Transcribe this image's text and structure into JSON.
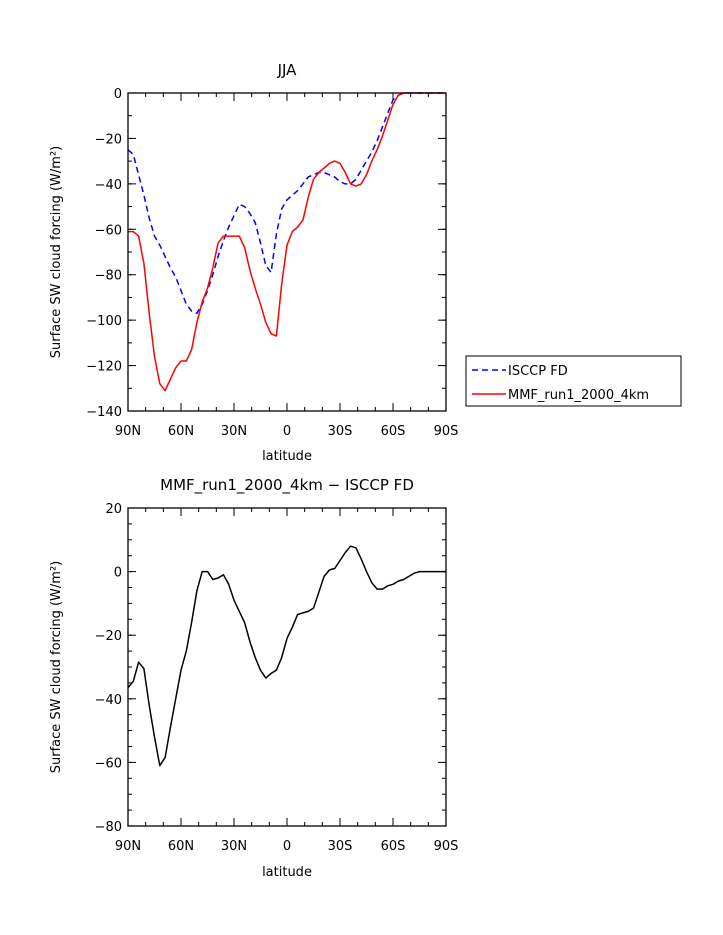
{
  "chart_data": [
    {
      "type": "line",
      "title": "JJA",
      "xlabel": "latitude",
      "ylabel": "Surface SW cloud forcing (W/m²)",
      "xlim": [
        90,
        -90
      ],
      "ylim": [
        -140,
        0
      ],
      "x_tick_labels": [
        "90N",
        "60N",
        "30N",
        "0",
        "30S",
        "60S",
        "90S"
      ],
      "x_tick_values": [
        90,
        60,
        30,
        0,
        -30,
        -60,
        -90
      ],
      "y_ticks": [
        0,
        -20,
        -40,
        -60,
        -80,
        -100,
        -120,
        -140
      ],
      "legend_position": "right",
      "series": [
        {
          "name": "ISCCP FD",
          "color": "#0000ff",
          "style": "dashed",
          "x": [
            90,
            87,
            84,
            81,
            78,
            75,
            72,
            69,
            66,
            63,
            60,
            57,
            54,
            51,
            48,
            45,
            42,
            39,
            36,
            33,
            30,
            27,
            24,
            21,
            18,
            15,
            12,
            9,
            6,
            3,
            0,
            -3,
            -6,
            -9,
            -12,
            -15,
            -18,
            -21,
            -24,
            -27,
            -30,
            -33,
            -36,
            -39,
            -42,
            -45,
            -48,
            -51,
            -54,
            -57,
            -60,
            -63,
            -66,
            -69,
            -72,
            -75,
            -78,
            -81,
            -84,
            -87,
            -90
          ],
          "y": [
            -25,
            -27,
            -36,
            -45,
            -55,
            -63,
            -67,
            -72,
            -77,
            -81,
            -87,
            -93,
            -96,
            -97,
            -93,
            -87,
            -80,
            -72,
            -65,
            -59,
            -54,
            -49,
            -50,
            -53,
            -57,
            -66,
            -76,
            -79,
            -62,
            -51,
            -47,
            -45,
            -43,
            -40,
            -37,
            -36,
            -35,
            -35,
            -36,
            -37,
            -39,
            -40,
            -40,
            -38,
            -34,
            -30,
            -26,
            -21,
            -15,
            -9,
            -3,
            -1,
            0,
            0,
            0,
            0,
            0,
            0,
            0,
            0,
            0
          ]
        },
        {
          "name": "MMF_run1_2000_4km",
          "color": "#ff0000",
          "style": "solid",
          "x": [
            90,
            87,
            84,
            81,
            78,
            75,
            72,
            69,
            66,
            63,
            60,
            57,
            54,
            51,
            48,
            45,
            42,
            39,
            36,
            33,
            30,
            27,
            24,
            21,
            18,
            15,
            12,
            9,
            6,
            3,
            0,
            -3,
            -6,
            -9,
            -12,
            -15,
            -18,
            -21,
            -24,
            -27,
            -30,
            -33,
            -36,
            -39,
            -42,
            -45,
            -48,
            -51,
            -54,
            -57,
            -60,
            -63,
            -66,
            -69,
            -72,
            -75,
            -78,
            -81,
            -84,
            -87,
            -90
          ],
          "y": [
            -61,
            -61,
            -63,
            -75,
            -97,
            -116,
            -128,
            -131,
            -126,
            -121,
            -118,
            -118,
            -113,
            -101,
            -92,
            -86,
            -77,
            -66,
            -63,
            -63,
            -63,
            -63,
            -68,
            -78,
            -86,
            -93,
            -101,
            -106,
            -107,
            -84,
            -67,
            -61,
            -59,
            -56,
            -46,
            -38,
            -35,
            -33,
            -31,
            -30,
            -31,
            -35,
            -40,
            -41,
            -40,
            -36,
            -30,
            -25,
            -19,
            -12,
            -5,
            -1,
            0,
            0,
            0,
            0,
            0,
            0,
            0,
            0,
            0
          ]
        }
      ]
    },
    {
      "type": "line",
      "title": "MMF_run1_2000_4km − ISCCP FD",
      "xlabel": "latitude",
      "ylabel": "Surface SW cloud forcing (W/m²)",
      "xlim": [
        90,
        -90
      ],
      "ylim": [
        -80,
        20
      ],
      "x_tick_labels": [
        "90N",
        "60N",
        "30N",
        "0",
        "30S",
        "60S",
        "90S"
      ],
      "x_tick_values": [
        90,
        60,
        30,
        0,
        -30,
        -60,
        -90
      ],
      "y_ticks": [
        20,
        0,
        -20,
        -40,
        -60,
        -80
      ],
      "series": [
        {
          "color": "#000000",
          "style": "solid",
          "x": [
            90,
            87,
            84,
            81,
            78,
            75,
            72,
            69,
            66,
            63,
            60,
            57,
            54,
            51,
            48,
            45,
            42,
            39,
            36,
            33,
            30,
            27,
            24,
            21,
            18,
            15,
            12,
            9,
            6,
            3,
            0,
            -3,
            -6,
            -9,
            -12,
            -15,
            -18,
            -21,
            -24,
            -27,
            -30,
            -33,
            -36,
            -39,
            -42,
            -45,
            -48,
            -51,
            -54,
            -57,
            -60,
            -63,
            -66,
            -69,
            -72,
            -75,
            -78,
            -81,
            -84,
            -87,
            -90
          ],
          "y": [
            -36.5,
            -34.5,
            -28.5,
            -30.5,
            -42,
            -52,
            -61,
            -58.5,
            -49,
            -40,
            -31,
            -25,
            -16,
            -6,
            0,
            0,
            -2.5,
            -2,
            -1,
            -4,
            -9,
            -12.5,
            -16,
            -22,
            -27,
            -31,
            -33.5,
            -32,
            -31,
            -27,
            -21,
            -17.5,
            -13.5,
            -13,
            -12.5,
            -11.5,
            -6.5,
            -1.5,
            0.5,
            1,
            3.5,
            6,
            8,
            7.5,
            4,
            0,
            -3.5,
            -5.5,
            -5.5,
            -4.5,
            -4,
            -3,
            -2.5,
            -1.5,
            -0.5,
            0,
            0,
            0,
            0,
            0,
            0
          ]
        }
      ]
    }
  ]
}
